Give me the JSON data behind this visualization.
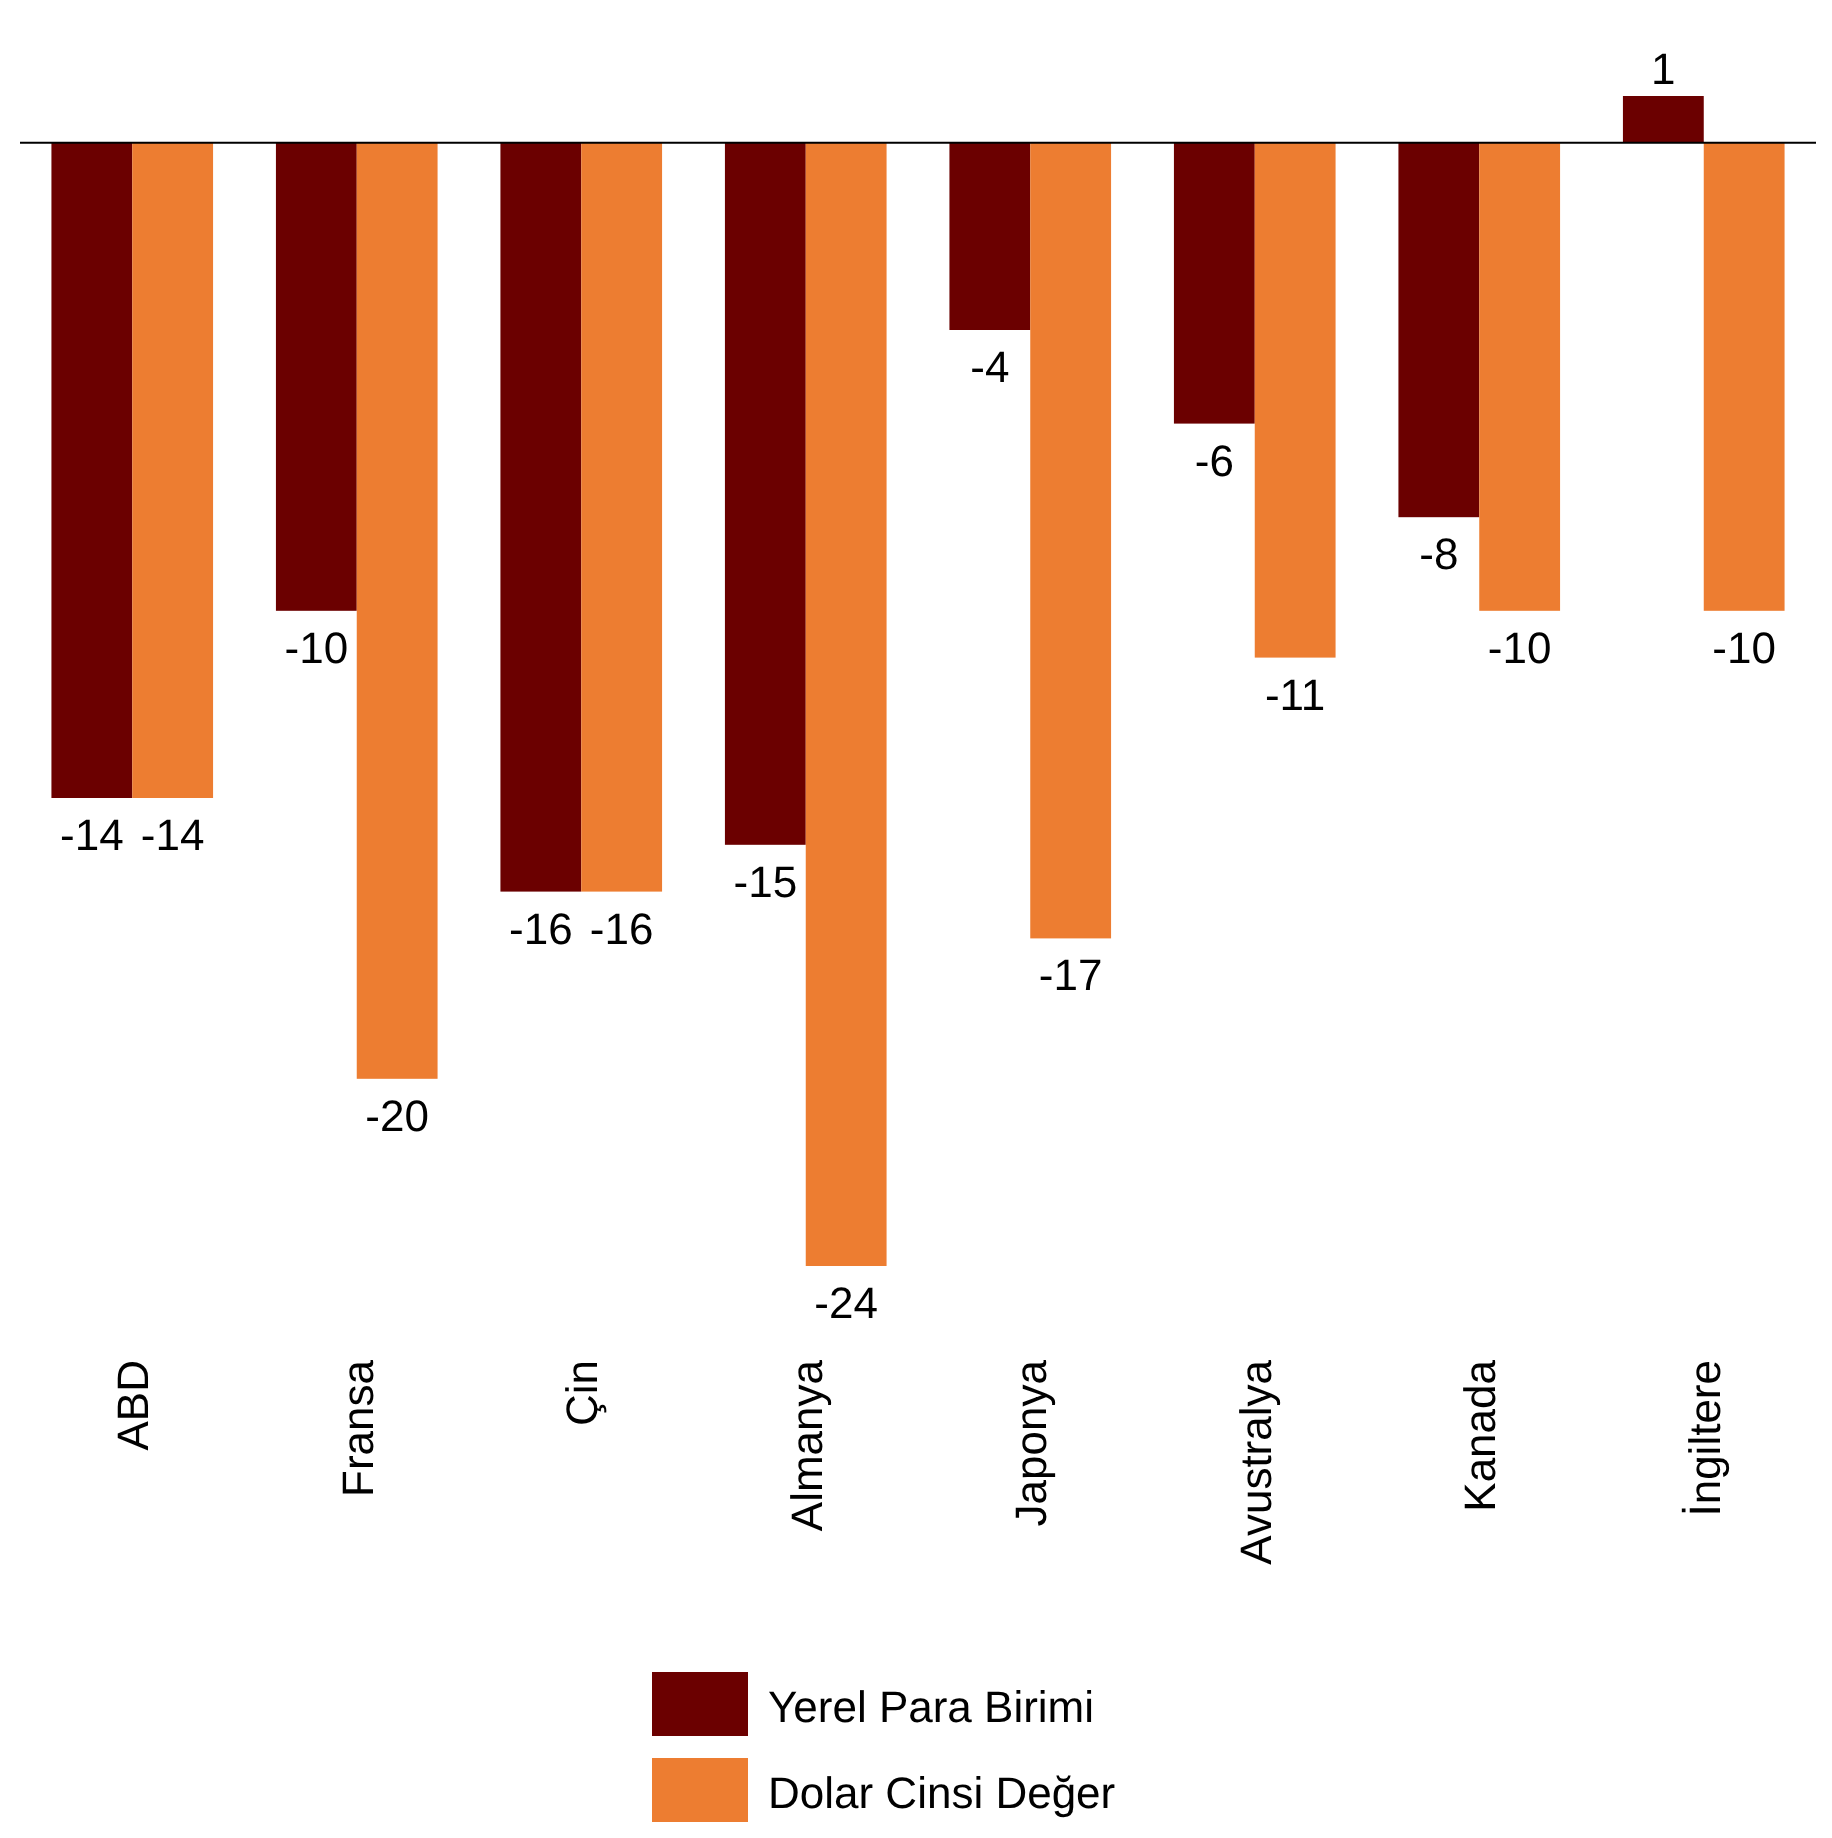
{
  "chart_data": {
    "type": "bar",
    "categories": [
      "ABD",
      "Fransa",
      "Çin",
      "Almanya",
      "Japonya",
      "Avustralya",
      "Kanada",
      "İngiltere"
    ],
    "series": [
      {
        "name": "Yerel Para Birimi",
        "color": "#6b0000",
        "values": [
          -14,
          -10,
          -16,
          -15,
          -4,
          -6,
          -8,
          1
        ]
      },
      {
        "name": "Dolar Cinsi Değer",
        "color": "#ed7d31",
        "values": [
          -14,
          -20,
          -16,
          -24,
          -17,
          -11,
          -10,
          -10
        ]
      }
    ],
    "data_labels": true,
    "grid": false,
    "legend": "bottom"
  }
}
